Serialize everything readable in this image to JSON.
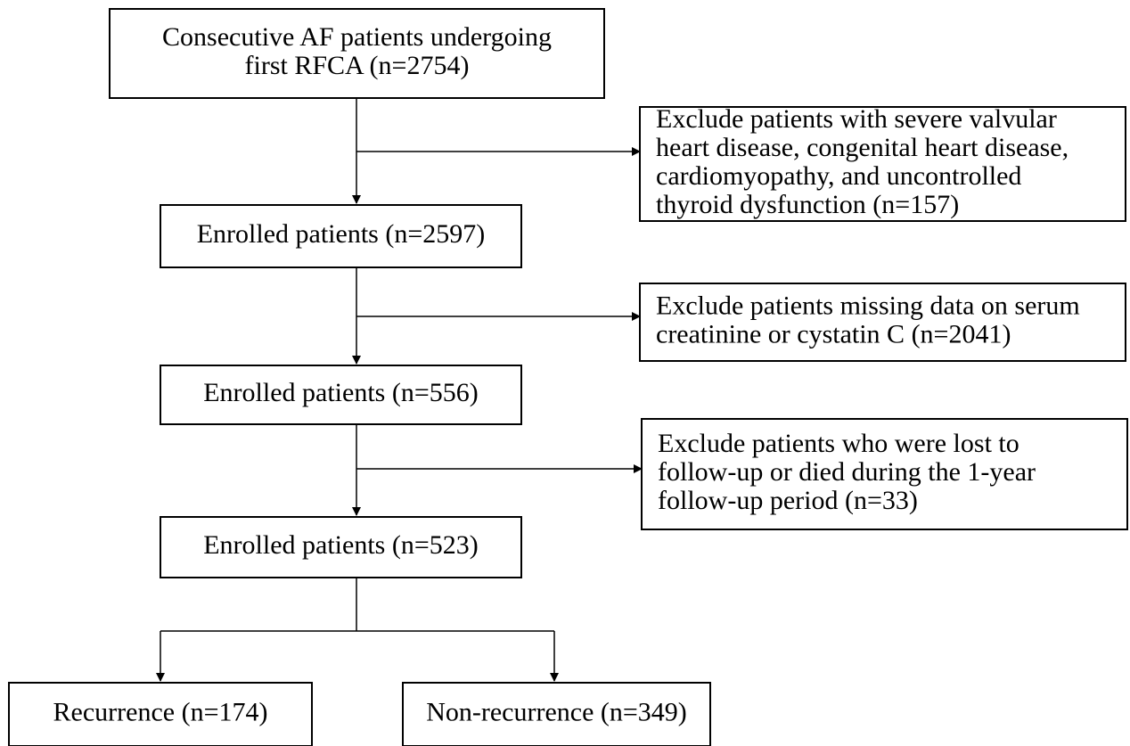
{
  "nodes": [
    {
      "lines": [
        "Consecutive AF patients undergoing",
        "first RFCA (n=2754)"
      ]
    },
    {
      "lines": [
        "Exclude patients with severe valvular",
        "heart disease, congenital heart disease,",
        "cardiomyopathy, and uncontrolled",
        "thyroid dysfunction (n=157)"
      ]
    },
    {
      "lines": [
        "Enrolled patients (n=2597)"
      ]
    },
    {
      "lines": [
        "Exclude patients missing data on serum",
        "creatinine or cystatin C (n=2041)"
      ]
    },
    {
      "lines": [
        "Enrolled patients (n=556)"
      ]
    },
    {
      "lines": [
        "Exclude patients who were lost to",
        "follow-up or died during the 1-year",
        "follow-up period (n=33)"
      ]
    },
    {
      "lines": [
        "Enrolled patients (n=523)"
      ]
    },
    {
      "lines": [
        "Recurrence (n=174)"
      ]
    },
    {
      "lines": [
        "Non-recurrence (n=349)"
      ]
    }
  ]
}
